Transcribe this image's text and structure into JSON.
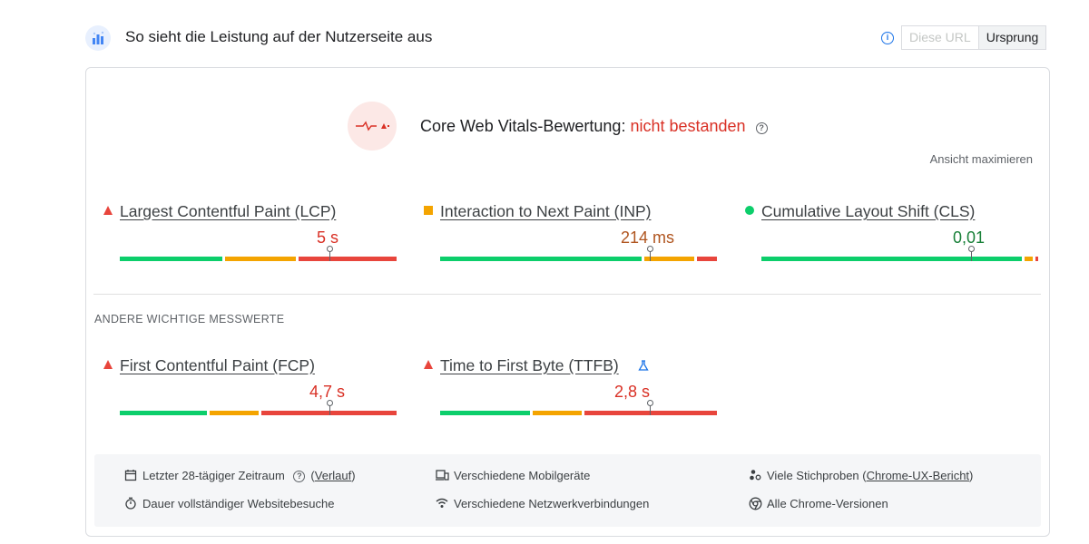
{
  "header": {
    "title": "So sieht die Leistung auf der Nutzerseite aus",
    "toggle": [
      "Diese URL",
      "Ursprung"
    ],
    "active_toggle": "Ursprung"
  },
  "assessment": {
    "label": "Core Web Vitals-Bewertung:",
    "status": "nicht bestanden",
    "status_color": "#d93025"
  },
  "maximize_label": "Ansicht maximieren",
  "core_metrics": [
    {
      "label": "Largest Contentful Paint (LCP)",
      "value": "5 s",
      "rating": "poor",
      "marker_fraction": 0.75,
      "segments": [
        0.375,
        0.265,
        0.36
      ]
    },
    {
      "label": "Interaction to Next Paint (INP)",
      "value": "214 ms",
      "rating": "average",
      "marker_fraction": 0.75,
      "segments": [
        0.73,
        0.19,
        0.08
      ]
    },
    {
      "label": "Cumulative Layout Shift (CLS)",
      "value": "0,01",
      "rating": "good",
      "marker_fraction": 0.75,
      "segments": [
        0.94,
        0.04,
        0.02
      ]
    }
  ],
  "other_section_title": "ANDERE WICHTIGE MESSWERTE",
  "other_metrics": [
    {
      "label": "First Contentful Paint (FCP)",
      "value": "4,7 s",
      "rating": "poor",
      "marker_fraction": 0.75,
      "segments": [
        0.32,
        0.185,
        0.495
      ]
    },
    {
      "label": "Time to First Byte (TTFB)",
      "value": "2,8 s",
      "rating": "poor",
      "marker_fraction": 0.75,
      "segments": [
        0.33,
        0.185,
        0.485
      ],
      "experimental_icon": "beaker-icon"
    }
  ],
  "info": {
    "period_prefix": "Letzter 28-tägiger Zeitraum",
    "history_link": "Verlauf",
    "visit_duration": "Dauer vollständiger Websitebesuche",
    "devices": "Verschiedene Mobilgeräte",
    "connections": "Verschiedene Netzwerkverbindungen",
    "samples_prefix": "Viele Stichproben",
    "samples_link": "Chrome-UX-Bericht",
    "versions": "Alle Chrome-Versionen"
  },
  "colors": {
    "good": "#0cce6b",
    "average": "#f4a400",
    "poor": "#e8453c",
    "accent": "#1a73e8"
  }
}
